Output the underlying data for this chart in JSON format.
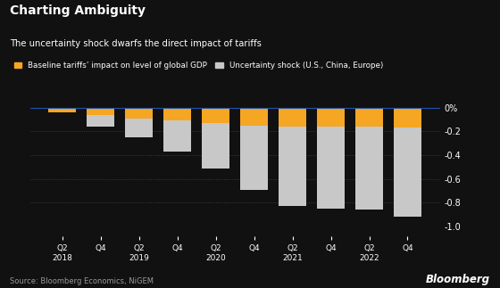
{
  "title": "Charting Ambiguity",
  "subtitle": "The uncertainty shock dwarfs the direct impact of tariffs",
  "source": "Source: Bloomberg Economics, NiGEM",
  "bloomberg_label": "Bloomberg",
  "legend_orange": "Baseline tariffs’ impact on level of global GDP",
  "legend_gray": "Uncertainty shock (U.S., China, Europe)",
  "background_color": "#111111",
  "text_color": "#ffffff",
  "orange_color": "#f5a623",
  "gray_color": "#c8c8c8",
  "ylim": [
    -1.08,
    0.08
  ],
  "yticks": [
    0,
    -0.2,
    -0.4,
    -0.6,
    -0.8,
    -1.0
  ],
  "ytick_labels": [
    "0%",
    "-0.2",
    "-0.4",
    "-0.6",
    "-0.8",
    "-1.0"
  ],
  "quarters": [
    "Q2\n2018",
    "Q4\n ",
    "Q2\n2019",
    "Q4\n ",
    "Q2\n2020",
    "Q4\n ",
    "Q2\n2021",
    "Q4\n ",
    "Q2\n2022",
    "Q4\n "
  ],
  "orange_values": [
    -0.04,
    -0.06,
    -0.09,
    -0.11,
    -0.13,
    -0.15,
    -0.16,
    -0.16,
    -0.16,
    -0.17
  ],
  "total_values": [
    -0.04,
    -0.16,
    -0.25,
    -0.37,
    -0.51,
    -0.69,
    -0.83,
    -0.85,
    -0.86,
    -0.92
  ]
}
